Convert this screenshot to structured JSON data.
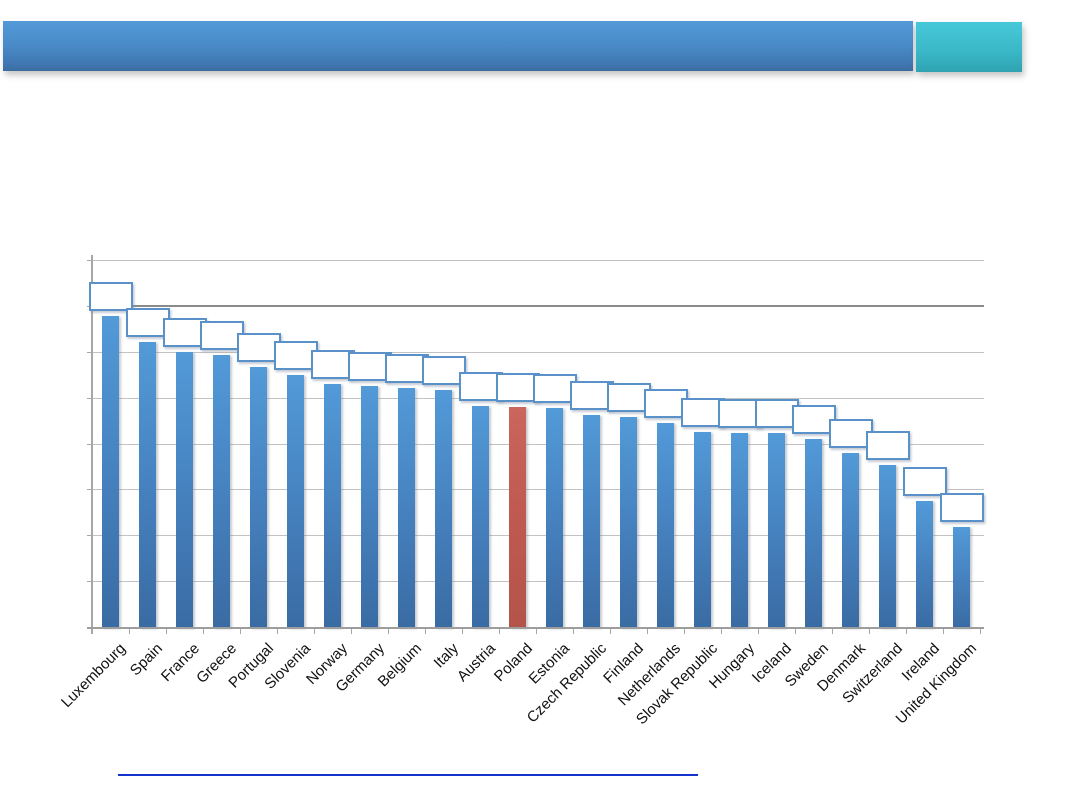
{
  "slide": {
    "banner": {
      "main_color_top": "#539ad9",
      "main_color_bottom": "#3c6c9d",
      "accent_color_top": "#47c8d8",
      "accent_color_bottom": "#2fa3b1",
      "title_text": ""
    },
    "footer_rule_color": "#1233cc"
  },
  "chart_data": {
    "type": "bar",
    "title": "",
    "xlabel": "",
    "ylabel": "",
    "categories": [
      "Luxembourg",
      "Spain",
      "France",
      "Greece",
      "Portugal",
      "Slovenia",
      "Norway",
      "Germany",
      "Belgium",
      "Italy",
      "Austria",
      "Poland",
      "Estonia",
      "Czech Republic",
      "Finland",
      "Netherlands",
      "Slovak Republic",
      "Hungary",
      "Iceland",
      "Sweden",
      "Denmark",
      "Switzerland",
      "Ireland",
      "United Kingdom"
    ],
    "values": [
      6.8,
      6.24,
      6.01,
      5.95,
      5.69,
      5.52,
      5.32,
      5.27,
      5.23,
      5.18,
      4.84,
      4.82,
      4.8,
      4.64,
      4.6,
      4.47,
      4.27,
      4.25,
      4.25,
      4.12,
      3.81,
      3.55,
      2.77,
      2.2
    ],
    "value_unit": "gridline intervals (y-axis has no tick labels; values estimated from unlabeled gridlines)",
    "ylim": [
      0,
      8
    ],
    "gridline_interval": 1,
    "emphasized_gridline_value": 7,
    "grid": "horizontal gridlines on, no y tick labels",
    "legend": "none",
    "highlighted_category": "Poland",
    "bar_color": "#4784c2",
    "highlight_color": "#c05a52",
    "data_labels": "empty white callout boxes with blue border above every bar (no visible text)",
    "x_label_rotation_deg": -45
  }
}
